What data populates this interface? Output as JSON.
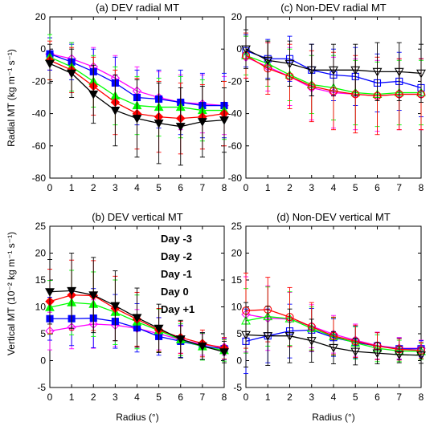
{
  "colors": {
    "day-3": "#ff00ff",
    "day-2": "#0000ff",
    "day-1": "#00ff00",
    "day0": "#ff0000",
    "day+1": "#000000"
  },
  "legend": {
    "placement": "top-right of panel (b)",
    "entries": [
      "Day -3",
      "Day -2",
      "Day -1",
      "Day 0",
      "Day +1"
    ]
  },
  "chart_data": [
    {
      "type": "line",
      "id": "a",
      "title": "(a) DEV radial MT",
      "xlabel": "",
      "ylabel": "Radial MT (kg m⁻¹ s⁻¹)",
      "xlim": [
        0,
        8
      ],
      "ylim": [
        -80,
        20
      ],
      "xticks": [
        "0",
        "1",
        "2",
        "3",
        "4",
        "5",
        "6",
        "7",
        "8"
      ],
      "yticks": [
        "-80",
        "-60",
        "-40",
        "-20",
        "0",
        "20"
      ],
      "x": [
        0,
        1,
        2,
        3,
        4,
        5,
        6,
        7,
        8
      ],
      "series": [
        {
          "name": "Day -3",
          "marker": "diamond-open",
          "values": [
            -3,
            -6,
            -11,
            -18,
            -26,
            -30,
            -33,
            -34,
            -35
          ],
          "errors": [
            10,
            10,
            12,
            14,
            15,
            16,
            17,
            18,
            18
          ]
        },
        {
          "name": "Day -2",
          "marker": "square-filled",
          "values": [
            -3,
            -8,
            -14,
            -21,
            -30,
            -31,
            -33,
            -35,
            -35
          ],
          "errors": [
            10,
            11,
            14,
            16,
            17,
            18,
            20,
            20,
            20
          ]
        },
        {
          "name": "Day -1",
          "marker": "triangle-up-filled",
          "values": [
            -5,
            -11,
            -20,
            -29,
            -35,
            -36,
            -36,
            -38,
            -38
          ],
          "errors": [
            14,
            15,
            16,
            18,
            18,
            18,
            19,
            19,
            18
          ]
        },
        {
          "name": "Day 0",
          "marker": "diamond-filled",
          "values": [
            -7,
            -13,
            -23,
            -33,
            -40,
            -42,
            -43,
            -42,
            -40
          ],
          "errors": [
            12,
            14,
            18,
            20,
            22,
            22,
            22,
            20,
            20
          ]
        },
        {
          "name": "Day +1",
          "marker": "triangle-down-filled",
          "values": [
            -9,
            -15,
            -28,
            -38,
            -43,
            -46,
            -48,
            -45,
            -44
          ],
          "errors": [
            12,
            15,
            18,
            22,
            24,
            25,
            24,
            22,
            20
          ]
        }
      ]
    },
    {
      "type": "line",
      "id": "c",
      "title": "(c) Non-DEV radial MT",
      "xlabel": "",
      "ylabel": "",
      "xlim": [
        0,
        8
      ],
      "ylim": [
        -80,
        20
      ],
      "xticks": [
        "0",
        "1",
        "2",
        "3",
        "4",
        "5",
        "6",
        "7",
        "8"
      ],
      "yticks": [
        "-80",
        "-60",
        "-40",
        "-20",
        "0",
        "20"
      ],
      "x": [
        0,
        1,
        2,
        3,
        4,
        5,
        6,
        7,
        8
      ],
      "series": [
        {
          "name": "Day -3",
          "marker": "diamond-open",
          "values": [
            -5,
            -11,
            -17,
            -24,
            -27,
            -28,
            -29,
            -28,
            -28
          ],
          "errors": [
            13,
            15,
            18,
            20,
            22,
            22,
            22,
            22,
            22
          ]
        },
        {
          "name": "Day -2",
          "marker": "square-open",
          "values": [
            -1,
            -6,
            -6,
            -13,
            -16,
            -17,
            -21,
            -20,
            -24
          ],
          "errors": [
            10,
            12,
            14,
            16,
            16,
            18,
            18,
            18,
            18
          ]
        },
        {
          "name": "Day -1",
          "marker": "triangle-up-open",
          "values": [
            -4,
            -9,
            -16,
            -22,
            -24,
            -27,
            -28,
            -27,
            -27
          ],
          "errors": [
            12,
            14,
            16,
            18,
            20,
            20,
            20,
            20,
            20
          ]
        },
        {
          "name": "Day 0",
          "marker": "circle-open",
          "values": [
            -4,
            -12,
            -17,
            -23,
            -26,
            -28,
            -29,
            -28,
            -28
          ],
          "errors": [
            14,
            16,
            20,
            22,
            24,
            24,
            24,
            22,
            22
          ]
        },
        {
          "name": "Day +1",
          "marker": "triangle-down-open",
          "values": [
            0,
            -7,
            -9,
            -13,
            -13,
            -13,
            -14,
            -14,
            -15
          ],
          "errors": [
            12,
            12,
            14,
            16,
            16,
            16,
            18,
            18,
            18
          ]
        }
      ]
    },
    {
      "type": "line",
      "id": "b",
      "title": "(b) DEV vertical MT",
      "xlabel": "Radius (°)",
      "ylabel": "Vertical MT (10⁻² kg m⁻¹ s⁻¹)",
      "xlim": [
        0,
        8
      ],
      "ylim": [
        -5,
        25
      ],
      "xticks": [
        "0",
        "1",
        "2",
        "3",
        "4",
        "5",
        "6",
        "7",
        "8"
      ],
      "yticks": [
        "-5",
        "0",
        "5",
        "10",
        "15",
        "20",
        "25"
      ],
      "x": [
        0,
        1,
        2,
        3,
        4,
        5,
        6,
        7,
        8
      ],
      "series": [
        {
          "name": "Day -3",
          "marker": "diamond-open",
          "values": [
            5.5,
            6.2,
            6.8,
            6.6,
            6.0,
            5.0,
            3.9,
            3.0,
            2.5
          ],
          "errors": [
            3.5,
            4,
            4.5,
            4,
            3.5,
            3,
            2.5,
            2,
            1.5
          ]
        },
        {
          "name": "Day -2",
          "marker": "square-filled",
          "values": [
            7.8,
            7.8,
            7.9,
            7.3,
            6.1,
            4.5,
            3.6,
            2.7,
            2.2
          ],
          "errors": [
            4,
            5,
            5.5,
            5,
            4.5,
            3.5,
            3,
            2.5,
            2
          ]
        },
        {
          "name": "Day -1",
          "marker": "triangle-up-filled",
          "values": [
            9.9,
            10.8,
            10.5,
            9.0,
            7.2,
            5.6,
            3.9,
            2.6,
            1.9
          ],
          "errors": [
            5,
            6,
            6,
            6,
            5,
            4,
            3,
            2.5,
            2
          ]
        },
        {
          "name": "Day 0",
          "marker": "diamond-filled",
          "values": [
            11.0,
            12.2,
            12.1,
            9.7,
            7.7,
            5.7,
            4.3,
            3.2,
            2.3
          ],
          "errors": [
            6,
            6.5,
            6.5,
            6,
            5,
            4,
            3,
            2.5,
            2
          ]
        },
        {
          "name": "Day +1",
          "marker": "triangle-down-filled",
          "values": [
            12.8,
            13.0,
            12.2,
            10.2,
            8.0,
            6.0,
            4.0,
            2.7,
            1.6
          ],
          "errors": [
            6,
            7,
            7,
            6.5,
            5.5,
            4.5,
            3.5,
            2.5,
            2
          ]
        }
      ]
    },
    {
      "type": "line",
      "id": "d",
      "title": "(d) Non-DEV vertical MT",
      "xlabel": "Radius (°)",
      "ylabel": "",
      "xlim": [
        0,
        8
      ],
      "ylim": [
        -5,
        25
      ],
      "xticks": [
        "0",
        "1",
        "2",
        "3",
        "4",
        "5",
        "6",
        "7",
        "8"
      ],
      "yticks": [
        "-5",
        "0",
        "5",
        "10",
        "15",
        "20",
        "25"
      ],
      "x": [
        0,
        1,
        2,
        3,
        4,
        5,
        6,
        7,
        8
      ],
      "series": [
        {
          "name": "Day -3",
          "marker": "diamond-open",
          "values": [
            8.6,
            7.9,
            7.7,
            6.4,
            4.9,
            3.8,
            2.8,
            2.3,
            2.3
          ],
          "errors": [
            7,
            6,
            5,
            4,
            3.5,
            3,
            2.5,
            2,
            1.5
          ]
        },
        {
          "name": "Day -2",
          "marker": "square-open",
          "values": [
            3.6,
            4.6,
            5.5,
            5.7,
            4.3,
            3.4,
            2.7,
            2.2,
            2.2
          ],
          "errors": [
            6,
            5,
            5,
            4,
            3.5,
            3,
            2.5,
            2,
            1.5
          ]
        },
        {
          "name": "Day -1",
          "marker": "triangle-up-open",
          "values": [
            7.4,
            8.2,
            7.8,
            6.0,
            4.5,
            3.3,
            2.3,
            1.8,
            1.7
          ],
          "errors": [
            6,
            5.5,
            5,
            4,
            3.5,
            3,
            2.5,
            2,
            1.5
          ]
        },
        {
          "name": "Day 0",
          "marker": "circle-open",
          "values": [
            9.3,
            9.5,
            8.1,
            6.3,
            4.6,
            3.6,
            2.7,
            2.1,
            1.9
          ],
          "errors": [
            7,
            6,
            5.5,
            4.5,
            3.5,
            3,
            2.5,
            2,
            1.5
          ]
        },
        {
          "name": "Day +1",
          "marker": "triangle-down-open",
          "values": [
            4.8,
            4.6,
            4.6,
            3.7,
            2.4,
            1.7,
            1.4,
            1.1,
            1.0
          ],
          "errors": [
            6,
            5.5,
            5,
            4,
            3,
            2.5,
            2,
            1.5,
            1.5
          ]
        }
      ]
    }
  ]
}
